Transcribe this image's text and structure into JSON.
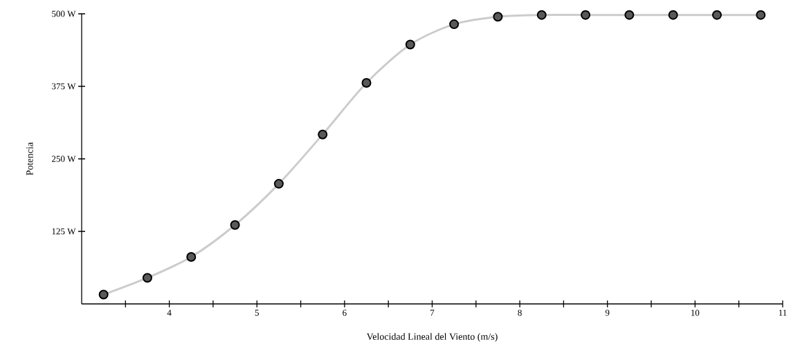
{
  "chart_data": {
    "type": "line",
    "xlabel": "Velocidad Lineal del Viento (m/s)",
    "ylabel": "Potencia",
    "x": [
      3.25,
      3.75,
      4.25,
      4.75,
      5.25,
      5.75,
      6.25,
      6.75,
      7.25,
      7.75,
      8.25,
      8.75,
      9.25,
      9.75,
      10.25,
      10.75
    ],
    "series": [
      {
        "color": "#cccccc",
        "values": [
          16,
          45,
          81,
          136,
          207,
          292,
          381,
          447,
          482,
          495,
          498,
          498,
          498,
          498,
          498,
          498
        ]
      }
    ],
    "marker": "circle",
    "xlim": [
      3,
      11
    ],
    "ylim": [
      0,
      500
    ],
    "xticks": [
      {
        "value": 3.5,
        "label": null
      },
      4,
      {
        "value": 4.5,
        "label": null
      },
      5,
      {
        "value": 5.5,
        "label": null
      },
      6,
      {
        "value": 6.5,
        "label": null
      },
      7,
      {
        "value": 7.5,
        "label": null
      },
      8,
      {
        "value": 8.5,
        "label": null
      },
      9,
      {
        "value": 9.5,
        "label": null
      },
      10,
      {
        "value": 10.5,
        "label": null
      },
      11
    ],
    "yticks": [
      {
        "value": 125,
        "label": "125 W"
      },
      {
        "value": 250,
        "label": "250 W"
      },
      {
        "value": 375,
        "label": "375 W"
      },
      {
        "value": 500,
        "label": "500 W"
      }
    ],
    "grid": false
  }
}
